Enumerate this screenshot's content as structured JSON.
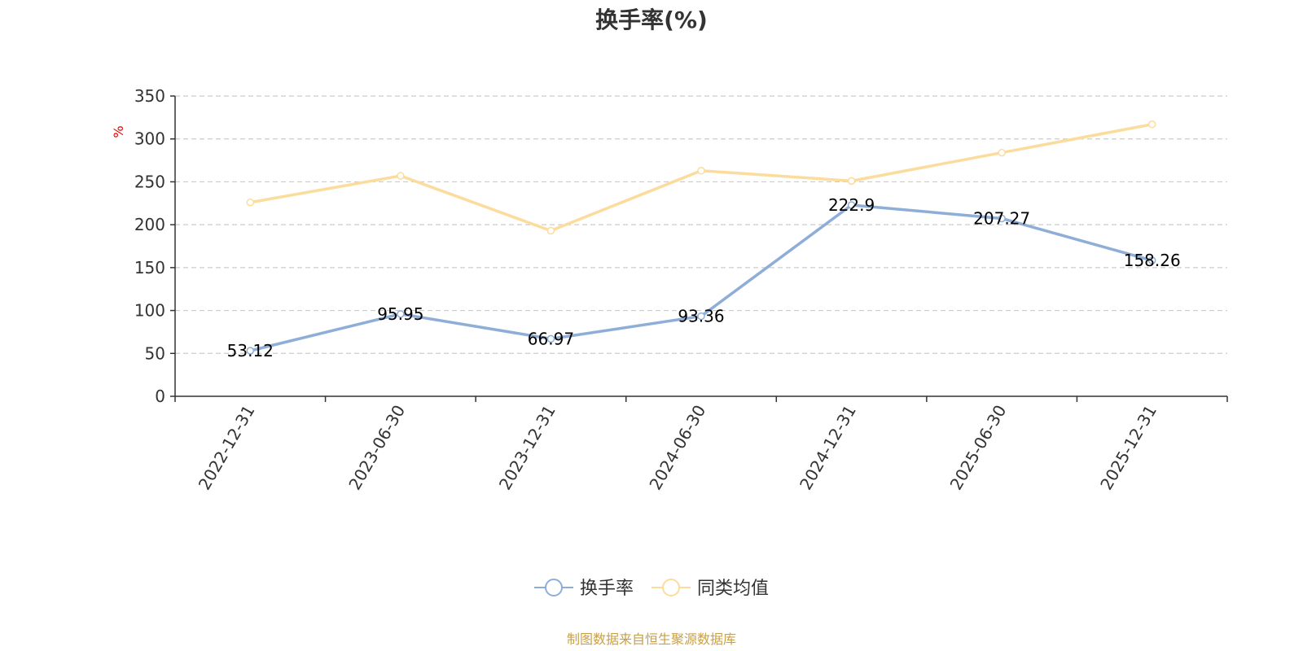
{
  "chart_data": {
    "type": "line",
    "title": "换手率(%)",
    "yunit": "%",
    "categories": [
      "2022-12-31",
      "2023-06-30",
      "2023-12-31",
      "2024-06-30",
      "2024-12-31",
      "2025-06-30",
      "2025-12-31"
    ],
    "ylim": [
      0,
      350
    ],
    "yticks": [
      0,
      50,
      100,
      150,
      200,
      250,
      300,
      350
    ],
    "grid": true,
    "legend_position": "bottom",
    "series": [
      {
        "name": "换手率",
        "color": "#8eaed8",
        "values": [
          53.12,
          95.95,
          66.97,
          93.36,
          222.9,
          207.27,
          158.26
        ],
        "labels": [
          "53.12",
          "95.95",
          "66.97",
          "93.36",
          "222.9",
          "207.27",
          "158.26"
        ]
      },
      {
        "name": "同类均值",
        "color": "#fbdc9c",
        "values": [
          226,
          257,
          193,
          263,
          251,
          284,
          317
        ]
      }
    ]
  },
  "source": "制图数据来自恒生聚源数据库"
}
